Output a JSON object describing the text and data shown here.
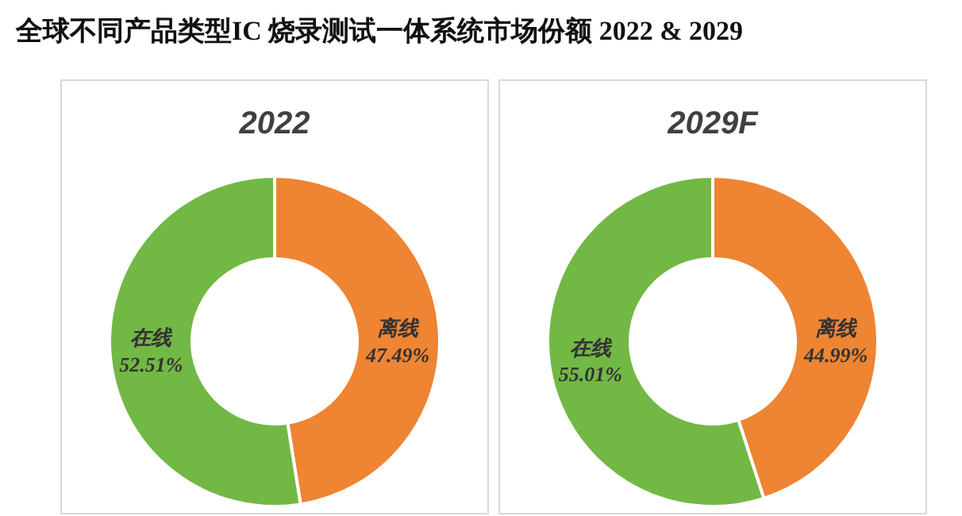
{
  "chart_data": [
    {
      "type": "donut",
      "title": "全球不同产品类型IC 烧录测试一体系统市场份额 2022 & 2029",
      "subtitle": "2022",
      "categories": [
        "离线",
        "在线"
      ],
      "values": [
        47.49,
        52.51
      ],
      "colors": [
        "#ef8433",
        "#72b845"
      ],
      "value_labels": [
        "47.49%",
        "52.51%"
      ]
    },
    {
      "type": "donut",
      "subtitle": "2029F",
      "categories": [
        "离线",
        "在线"
      ],
      "values": [
        44.99,
        55.01
      ],
      "colors": [
        "#ef8433",
        "#72b845"
      ],
      "value_labels": [
        "44.99%",
        "55.01%"
      ]
    }
  ]
}
